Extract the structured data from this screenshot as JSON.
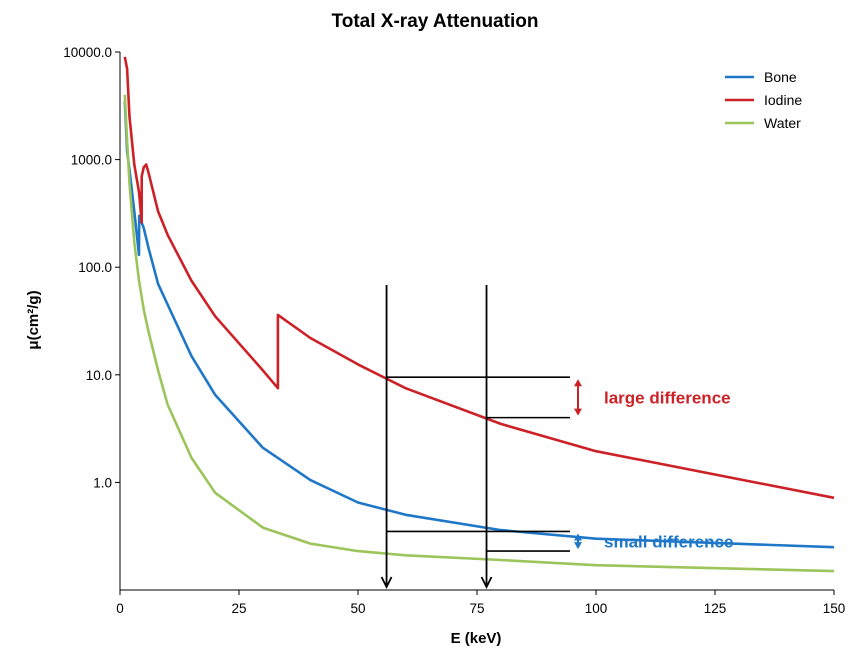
{
  "chart_data": {
    "type": "line",
    "title": "Total X-ray Attenuation",
    "xlabel": "E (keV)",
    "ylabel": "μ(cm²/g)",
    "xlim": [
      0,
      150
    ],
    "ylim": [
      0.1,
      10000
    ],
    "y_scale": "log",
    "grid": false,
    "legend_position": "top-right",
    "x_ticks": [
      {
        "value": 0,
        "label": "0"
      },
      {
        "value": 25,
        "label": "25"
      },
      {
        "value": 50,
        "label": "50"
      },
      {
        "value": 75,
        "label": "75"
      },
      {
        "value": 100,
        "label": "100"
      },
      {
        "value": 125,
        "label": "125"
      },
      {
        "value": 150,
        "label": "150"
      }
    ],
    "y_ticks": [
      {
        "value": 1,
        "label": "1.0"
      },
      {
        "value": 10,
        "label": "10.0"
      },
      {
        "value": 100,
        "label": "100.0"
      },
      {
        "value": 1000,
        "label": "1000.0"
      },
      {
        "value": 10000,
        "label": "10000.0"
      }
    ],
    "series": [
      {
        "name": "Bone",
        "color": "#1f77c8",
        "points": [
          [
            1,
            3500
          ],
          [
            1.5,
            1200
          ],
          [
            2,
            800
          ],
          [
            3,
            330
          ],
          [
            4,
            130
          ],
          [
            4.04,
            300
          ],
          [
            5,
            230
          ],
          [
            6,
            150
          ],
          [
            8,
            70
          ],
          [
            10,
            45
          ],
          [
            15,
            15
          ],
          [
            20,
            6.5
          ],
          [
            30,
            2.1
          ],
          [
            40,
            1.05
          ],
          [
            50,
            0.65
          ],
          [
            60,
            0.5
          ],
          [
            80,
            0.36
          ],
          [
            100,
            0.3
          ],
          [
            150,
            0.25
          ]
        ]
      },
      {
        "name": "Iodine",
        "color": "#cc2127",
        "points": [
          [
            1,
            9000
          ],
          [
            1.5,
            7000
          ],
          [
            2,
            2500
          ],
          [
            3,
            900
          ],
          [
            4,
            500
          ],
          [
            4.56,
            260
          ],
          [
            4.56,
            700
          ],
          [
            5,
            850
          ],
          [
            5.5,
            900
          ],
          [
            6,
            750
          ],
          [
            8,
            330
          ],
          [
            10,
            200
          ],
          [
            15,
            75
          ],
          [
            20,
            35
          ],
          [
            30,
            11
          ],
          [
            33.17,
            7.5
          ],
          [
            33.17,
            36
          ],
          [
            40,
            22
          ],
          [
            50,
            12.5
          ],
          [
            60,
            7.5
          ],
          [
            80,
            3.5
          ],
          [
            100,
            1.95
          ],
          [
            150,
            0.72
          ]
        ]
      },
      {
        "name": "Water",
        "color": "#9bc55a",
        "points": [
          [
            1,
            4000
          ],
          [
            1.5,
            1500
          ],
          [
            2,
            600
          ],
          [
            3,
            170
          ],
          [
            4,
            75
          ],
          [
            5,
            40
          ],
          [
            6,
            25
          ],
          [
            8,
            11
          ],
          [
            10,
            5.3
          ],
          [
            15,
            1.7
          ],
          [
            20,
            0.8
          ],
          [
            30,
            0.38
          ],
          [
            40,
            0.27
          ],
          [
            50,
            0.23
          ],
          [
            60,
            0.21
          ],
          [
            80,
            0.19
          ],
          [
            100,
            0.17
          ],
          [
            150,
            0.15
          ]
        ]
      }
    ],
    "annotations": {
      "arrows_at_x": [
        56,
        77
      ],
      "large_difference": {
        "text": "large difference",
        "color": "#cc2127",
        "x": [
          56,
          77
        ],
        "y": [
          9.5,
          4
        ]
      },
      "small_difference": {
        "text": "small difference",
        "color": "#1f77c8",
        "x": [
          56,
          77
        ],
        "y": [
          0.35,
          0.23
        ]
      }
    }
  }
}
